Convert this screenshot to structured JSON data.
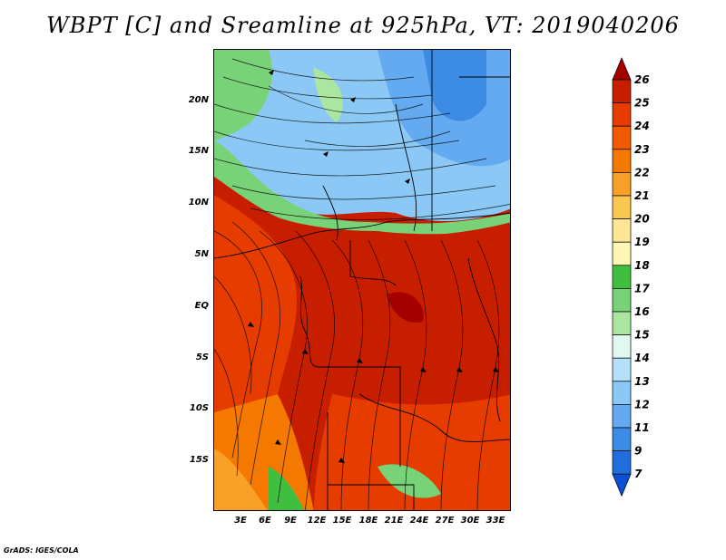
{
  "title": "WBPT [C] and Sreamline at 925hPa, VT: 2019040206",
  "credit": "GrADS: IGES/COLA",
  "map": {
    "lat_labels": [
      "20N",
      "15N",
      "10N",
      "5N",
      "EQ",
      "5S",
      "10S",
      "15S"
    ],
    "lon_labels": [
      "3E",
      "6E",
      "9E",
      "12E",
      "15E",
      "18E",
      "21E",
      "24E",
      "27E",
      "30E",
      "33E"
    ]
  },
  "colorbar": {
    "labels": [
      "26",
      "25",
      "24",
      "23",
      "22",
      "21",
      "20",
      "19",
      "18",
      "17",
      "16",
      "15",
      "14",
      "13",
      "12",
      "11",
      "9",
      "7"
    ],
    "colors": [
      "#a50000",
      "#c81e00",
      "#e63c00",
      "#f05a00",
      "#f57800",
      "#f8a028",
      "#fac850",
      "#fde696",
      "#fff5b4",
      "#40be40",
      "#78d278",
      "#aae6a0",
      "#e0f8f0",
      "#b4e0fa",
      "#8cc8f5",
      "#64aaf0",
      "#3c8ce6",
      "#1e6edc",
      "#0a50d2"
    ]
  }
}
